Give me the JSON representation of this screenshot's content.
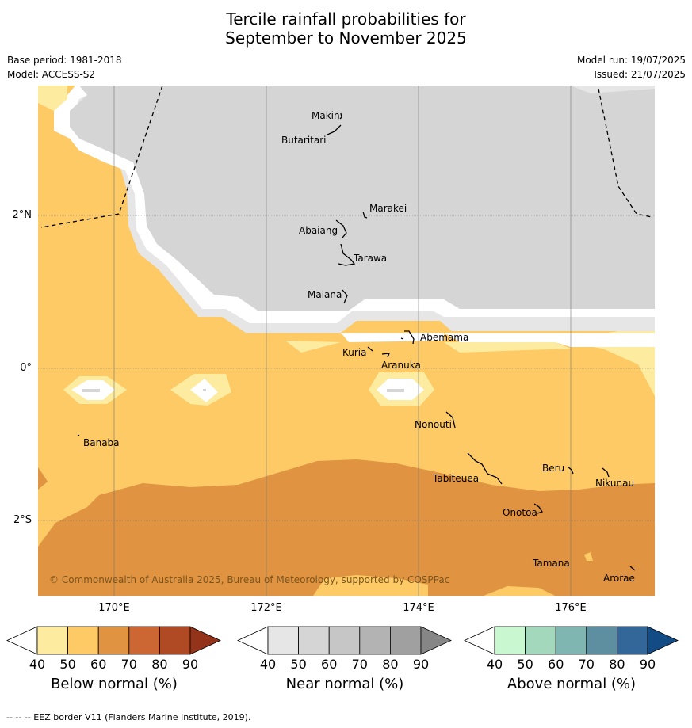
{
  "title": {
    "line1": "Tercile rainfall probabilities for",
    "line2": "September to November 2025"
  },
  "meta": {
    "base_period": "Base period: 1981-2018",
    "model": "Model: ACCESS-S2",
    "model_run": "Model run: 19/07/2025",
    "issued": "Issued: 21/07/2025"
  },
  "map": {
    "lon_labels": [
      "170°E",
      "172°E",
      "174°E",
      "176°E"
    ],
    "lat_labels": [
      "2°N",
      "0°",
      "2°S"
    ],
    "copyright": "© Commonwealth of Australia 2025, Bureau of Meteorology, supported by COSPPac",
    "places": [
      "Makin",
      "Butaritari",
      "Marakei",
      "Abaiang",
      "Tarawa",
      "Maiana",
      "Abemama",
      "Kuria",
      "Aranuka",
      "Nonouti",
      "Banaba",
      "Tabiteuea",
      "Beru",
      "Nikunau",
      "Onotoa",
      "Tamana",
      "Arorae"
    ],
    "colors": {
      "near_normal_50": "#d5d5d5",
      "near_normal_40": "#e6e6e6",
      "below_normal_40": "#fdeba0",
      "below_normal_50": "#fdca66",
      "below_normal_60": "#e09340"
    }
  },
  "colorbars": [
    {
      "label": "Below normal (%)",
      "ticks": [
        "40",
        "50",
        "60",
        "70",
        "80",
        "90"
      ],
      "colors": [
        "#ffffff",
        "#fdeba0",
        "#fdca66",
        "#e09340",
        "#cc6633",
        "#b04a24",
        "#93331a"
      ]
    },
    {
      "label": "Near normal (%)",
      "ticks": [
        "40",
        "50",
        "60",
        "70",
        "80",
        "90"
      ],
      "colors": [
        "#ffffff",
        "#e6e6e6",
        "#d5d5d5",
        "#c6c6c6",
        "#b3b3b3",
        "#a0a0a0",
        "#868686"
      ]
    },
    {
      "label": "Above normal (%)",
      "ticks": [
        "40",
        "50",
        "60",
        "70",
        "80",
        "90"
      ],
      "colors": [
        "#ffffff",
        "#c9f7d0",
        "#a3d8bd",
        "#80b6b1",
        "#5d8fa1",
        "#336699",
        "#134b85"
      ]
    }
  ],
  "footer": "-- -- -- EEZ border V11 (Flanders Marine Institute, 2019)."
}
